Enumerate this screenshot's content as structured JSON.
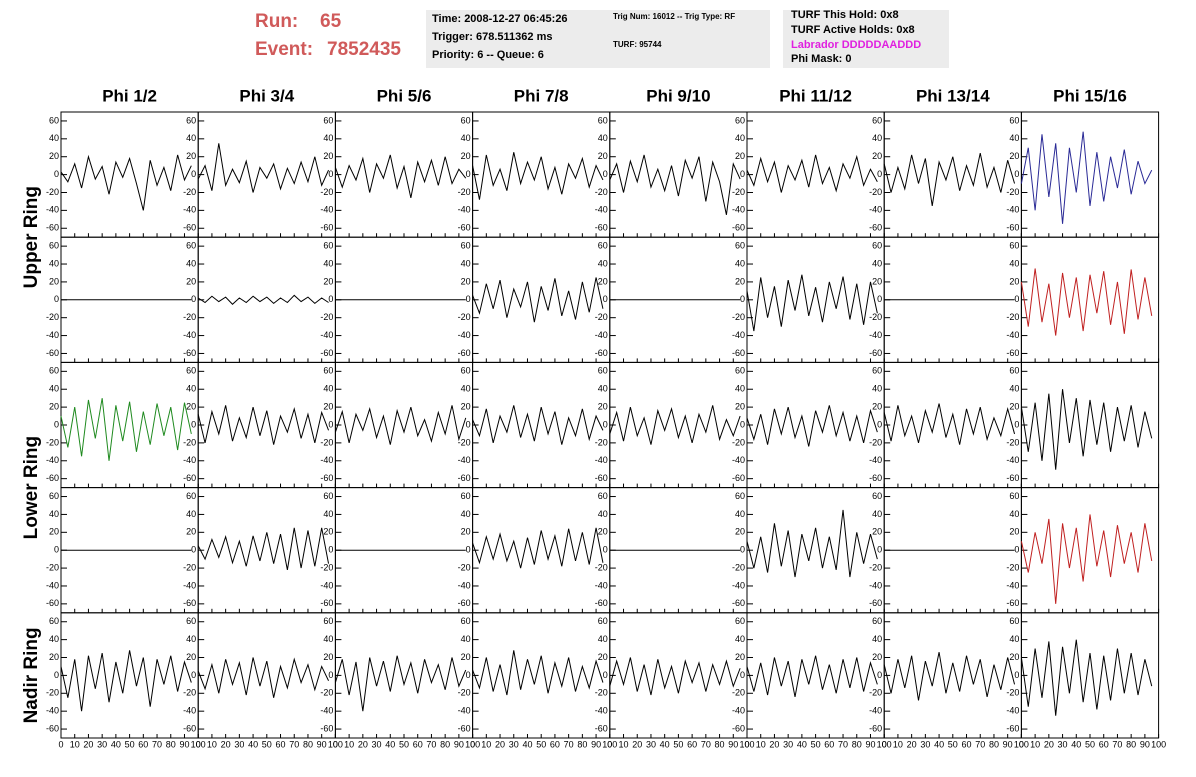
{
  "header": {
    "run_label": "Run:",
    "run": "65",
    "event_label": "Event:",
    "event": "7852435",
    "box1": [
      "Time: 2008-12-27 06:45:26",
      "Trigger: 678.511362 ms",
      "Priority: 6 -- Queue: 6"
    ],
    "box2": [
      "Trig Num: 16012 -- Trig Type: RF",
      "TURF: 95744"
    ],
    "box3": [
      "TURF This Hold: 0x8",
      "TURF Active Holds: 0x8",
      "Labrador DDDDDAADDD",
      "Phi Mask: 0"
    ]
  },
  "chart_data": {
    "type": "line",
    "columns": [
      "Phi 1/2",
      "Phi 3/4",
      "Phi 5/6",
      "Phi 7/8",
      "Phi 9/10",
      "Phi 11/12",
      "Phi 13/14",
      "Phi 15/16"
    ],
    "ring_labels": [
      "Upper Ring",
      "Lower Ring",
      "Nadir Ring"
    ],
    "x": [
      0,
      5,
      10,
      15,
      20,
      25,
      30,
      35,
      40,
      45,
      50,
      55,
      60,
      65,
      70,
      75,
      80,
      85,
      90,
      95
    ],
    "xlim": [
      0,
      100
    ],
    "xticks": [
      0,
      10,
      20,
      30,
      40,
      50,
      60,
      70,
      80,
      90,
      100
    ],
    "ylim": [
      -70,
      70
    ],
    "yticks": [
      -60,
      -40,
      -20,
      0,
      20,
      40,
      60
    ],
    "panel_rows": [
      [
        {
          "color": "#000000",
          "values": [
            3,
            -8,
            12,
            -15,
            20,
            -5,
            9,
            -22,
            14,
            -3,
            18,
            -10,
            -40,
            16,
            -12,
            8,
            -18,
            22,
            -6,
            10
          ]
        },
        {
          "color": "#000000",
          "values": [
            -5,
            10,
            -18,
            35,
            -12,
            6,
            -9,
            15,
            -20,
            8,
            -4,
            12,
            -16,
            7,
            -10,
            14,
            -8,
            20,
            -12,
            5
          ]
        },
        {
          "color": "#000000",
          "values": [
            8,
            -14,
            10,
            -6,
            18,
            -20,
            12,
            -4,
            22,
            -15,
            9,
            -26,
            14,
            -8,
            16,
            -12,
            20,
            -10,
            6,
            -4
          ]
        },
        {
          "color": "#000000",
          "values": [
            10,
            -28,
            22,
            -12,
            6,
            -18,
            25,
            -10,
            14,
            -6,
            20,
            -16,
            8,
            -22,
            12,
            -4,
            18,
            -14,
            10,
            -6
          ]
        },
        {
          "color": "#000000",
          "values": [
            -6,
            12,
            -20,
            15,
            -8,
            22,
            -14,
            6,
            -18,
            10,
            -24,
            16,
            -4,
            20,
            -30,
            14,
            -8,
            -45,
            12,
            -5
          ]
        },
        {
          "color": "#000000",
          "values": [
            5,
            -12,
            18,
            -8,
            14,
            -20,
            10,
            -6,
            16,
            -14,
            22,
            -10,
            8,
            -18,
            12,
            -4,
            20,
            -12,
            6,
            -8
          ]
        },
        {
          "color": "#000000",
          "values": [
            12,
            -20,
            8,
            -16,
            22,
            -10,
            18,
            -35,
            14,
            -6,
            20,
            -18,
            10,
            -12,
            24,
            -14,
            8,
            -20,
            16,
            -10
          ]
        },
        {
          "color": "#2a2a96",
          "values": [
            -10,
            30,
            -40,
            45,
            -25,
            35,
            -55,
            30,
            -20,
            48,
            -35,
            25,
            -30,
            20,
            -15,
            28,
            -22,
            15,
            -10,
            5
          ]
        }
      ],
      [
        {
          "color": "#000000",
          "values": [
            0,
            0,
            0,
            0,
            0,
            0,
            0,
            0,
            0,
            0,
            0,
            0,
            0,
            0,
            0,
            0,
            0,
            0,
            0,
            0
          ]
        },
        {
          "color": "#000000",
          "values": [
            2,
            -3,
            4,
            -2,
            3,
            -5,
            2,
            -3,
            4,
            -2,
            3,
            -4,
            2,
            -3,
            5,
            -2,
            3,
            -4,
            2,
            -3
          ]
        },
        {
          "color": "#000000",
          "values": [
            0,
            0,
            0,
            0,
            0,
            0,
            0,
            0,
            0,
            0,
            0,
            0,
            0,
            0,
            0,
            0,
            0,
            0,
            0,
            0
          ]
        },
        {
          "color": "#000000",
          "values": [
            5,
            -15,
            18,
            -10,
            22,
            -20,
            12,
            -8,
            20,
            -25,
            15,
            -12,
            24,
            -18,
            10,
            -22,
            20,
            -14,
            25,
            -10
          ]
        },
        {
          "color": "#000000",
          "values": [
            0,
            0,
            0,
            0,
            0,
            0,
            0,
            0,
            0,
            0,
            0,
            0,
            0,
            0,
            0,
            0,
            0,
            0,
            0,
            0
          ]
        },
        {
          "color": "#000000",
          "values": [
            10,
            -35,
            25,
            -20,
            15,
            -30,
            22,
            -12,
            28,
            -18,
            14,
            -25,
            20,
            -10,
            26,
            -22,
            18,
            -28,
            20,
            -15
          ]
        },
        {
          "color": "#000000",
          "values": [
            0,
            0,
            0,
            0,
            0,
            0,
            0,
            0,
            0,
            0,
            0,
            0,
            0,
            0,
            0,
            0,
            0,
            0,
            0,
            0
          ]
        },
        {
          "color": "#c02020",
          "values": [
            20,
            -30,
            35,
            -25,
            18,
            -40,
            30,
            -20,
            25,
            -35,
            28,
            -15,
            32,
            -28,
            20,
            -38,
            34,
            -22,
            25,
            -18
          ]
        }
      ],
      [
        {
          "color": "#1f8a1f",
          "values": [
            10,
            -25,
            20,
            -35,
            28,
            -15,
            30,
            -40,
            22,
            -18,
            26,
            -30,
            15,
            -22,
            24,
            -12,
            20,
            -28,
            25,
            -10
          ]
        },
        {
          "color": "#000000",
          "values": [
            12,
            -20,
            15,
            -10,
            22,
            -18,
            8,
            -14,
            20,
            -12,
            16,
            -22,
            10,
            -8,
            18,
            -15,
            12,
            -20,
            14,
            -6
          ]
        },
        {
          "color": "#000000",
          "values": [
            -8,
            15,
            -20,
            12,
            -6,
            18,
            -14,
            10,
            -22,
            16,
            -8,
            20,
            -12,
            6,
            -18,
            14,
            -10,
            22,
            -16,
            8
          ]
        },
        {
          "color": "#000000",
          "values": [
            6,
            -12,
            18,
            -20,
            10,
            -8,
            22,
            -14,
            12,
            -18,
            20,
            -10,
            15,
            -22,
            8,
            -12,
            18,
            -16,
            10,
            -6
          ]
        },
        {
          "color": "#000000",
          "values": [
            -10,
            14,
            -18,
            20,
            -12,
            8,
            -22,
            16,
            -6,
            18,
            -14,
            10,
            -20,
            12,
            -8,
            22,
            -16,
            6,
            -12,
            10
          ]
        },
        {
          "color": "#000000",
          "values": [
            8,
            -16,
            12,
            -22,
            18,
            -10,
            20,
            -14,
            10,
            -24,
            16,
            -8,
            22,
            -12,
            14,
            -18,
            10,
            -20,
            16,
            -8
          ]
        },
        {
          "color": "#000000",
          "values": [
            14,
            -18,
            22,
            -12,
            10,
            -20,
            16,
            -8,
            24,
            -14,
            12,
            -22,
            18,
            -10,
            20,
            -16,
            8,
            -12,
            18,
            -10
          ]
        },
        {
          "color": "#000000",
          "values": [
            20,
            -30,
            25,
            -40,
            35,
            -50,
            40,
            -20,
            30,
            -35,
            28,
            -22,
            25,
            -30,
            20,
            -18,
            22,
            -25,
            15,
            -15
          ]
        }
      ],
      [
        {
          "color": "#000000",
          "values": [
            0,
            0,
            0,
            0,
            0,
            0,
            0,
            0,
            0,
            0,
            0,
            0,
            0,
            0,
            0,
            0,
            0,
            0,
            0,
            0
          ]
        },
        {
          "color": "#000000",
          "values": [
            5,
            -10,
            12,
            -8,
            15,
            -14,
            10,
            -18,
            16,
            -12,
            20,
            -15,
            18,
            -22,
            25,
            -20,
            22,
            -18,
            25,
            -15
          ]
        },
        {
          "color": "#000000",
          "values": [
            0,
            0,
            0,
            0,
            0,
            0,
            0,
            0,
            0,
            0,
            0,
            0,
            0,
            0,
            0,
            0,
            0,
            0,
            0,
            0
          ]
        },
        {
          "color": "#000000",
          "values": [
            8,
            -14,
            15,
            -10,
            18,
            -12,
            10,
            -20,
            14,
            -16,
            22,
            -10,
            16,
            -18,
            24,
            -12,
            20,
            -16,
            25,
            -14
          ]
        },
        {
          "color": "#000000",
          "values": [
            0,
            0,
            0,
            0,
            0,
            0,
            0,
            0,
            0,
            0,
            0,
            0,
            0,
            0,
            0,
            0,
            0,
            0,
            0,
            0
          ]
        },
        {
          "color": "#000000",
          "values": [
            10,
            -20,
            15,
            -25,
            30,
            -18,
            22,
            -30,
            18,
            -12,
            25,
            -20,
            15,
            -22,
            45,
            -30,
            20,
            -15,
            18,
            -10
          ]
        },
        {
          "color": "#000000",
          "values": [
            0,
            0,
            0,
            0,
            0,
            0,
            0,
            0,
            0,
            0,
            0,
            0,
            0,
            0,
            0,
            0,
            0,
            0,
            0,
            0
          ]
        },
        {
          "color": "#c02020",
          "values": [
            10,
            -25,
            20,
            -15,
            35,
            -60,
            30,
            -20,
            25,
            -35,
            40,
            -18,
            22,
            -30,
            28,
            -15,
            20,
            -25,
            30,
            -12
          ]
        }
      ],
      [
        {
          "color": "#000000",
          "values": [
            10,
            -25,
            18,
            -40,
            22,
            -15,
            25,
            -30,
            15,
            -20,
            28,
            -12,
            20,
            -35,
            18,
            -10,
            22,
            -18,
            15,
            -8
          ]
        },
        {
          "color": "#000000",
          "values": [
            5,
            -15,
            12,
            -20,
            18,
            -10,
            14,
            -22,
            20,
            -12,
            16,
            -25,
            10,
            -14,
            18,
            -8,
            12,
            -16,
            10,
            -6
          ]
        },
        {
          "color": "#000000",
          "values": [
            -8,
            18,
            -22,
            15,
            -40,
            20,
            -12,
            16,
            -18,
            22,
            -10,
            14,
            -20,
            18,
            -8,
            12,
            -16,
            20,
            -12,
            6
          ]
        },
        {
          "color": "#000000",
          "values": [
            6,
            -14,
            20,
            -18,
            12,
            -22,
            28,
            -16,
            18,
            -10,
            22,
            -20,
            14,
            -12,
            20,
            -18,
            10,
            -14,
            16,
            -8
          ]
        },
        {
          "color": "#000000",
          "values": [
            -12,
            16,
            -10,
            20,
            -18,
            12,
            -22,
            18,
            -14,
            10,
            -20,
            16,
            -8,
            14,
            -18,
            12,
            -10,
            16,
            -12,
            8
          ]
        },
        {
          "color": "#000000",
          "values": [
            10,
            -18,
            14,
            -22,
            20,
            -12,
            16,
            -24,
            18,
            -10,
            22,
            -16,
            12,
            -20,
            18,
            -14,
            20,
            -18,
            14,
            -10
          ]
        },
        {
          "color": "#000000",
          "values": [
            12,
            -20,
            18,
            -14,
            22,
            -28,
            16,
            -12,
            26,
            -20,
            14,
            -18,
            22,
            -10,
            18,
            -24,
            12,
            -16,
            20,
            -10
          ]
        },
        {
          "color": "#000000",
          "values": [
            20,
            -35,
            30,
            -25,
            38,
            -45,
            32,
            -20,
            40,
            -30,
            25,
            -38,
            22,
            -28,
            30,
            -20,
            25,
            -22,
            18,
            -12
          ]
        }
      ]
    ]
  }
}
